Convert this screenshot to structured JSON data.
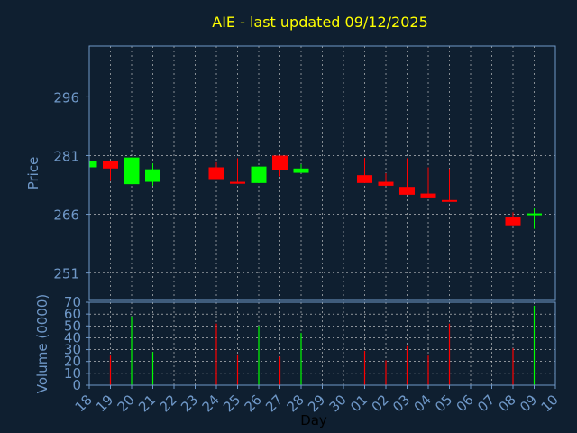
{
  "title": "AIE - last updated 09/12/2025",
  "colors": {
    "background": "#0f1f30",
    "frame": "#6f98c8",
    "grid": "#d8d8d8",
    "up": "#00ff00",
    "down": "#ff0000",
    "title": "#ffff00"
  },
  "chart_data": [
    {
      "type": "candlestick",
      "ylabel": "Price",
      "ylim": [
        244,
        309
      ],
      "yticks": [
        251,
        266,
        281,
        296
      ],
      "grid": true,
      "categories": [
        "18",
        "19",
        "20",
        "21",
        "22",
        "23",
        "24",
        "25",
        "26",
        "27",
        "28",
        "29",
        "30",
        "01",
        "02",
        "03",
        "04",
        "05",
        "06",
        "07",
        "08",
        "09",
        "10"
      ],
      "candles": [
        {
          "day": "18",
          "open": 278,
          "close": 279.5,
          "high": 279.5,
          "low": 278
        },
        {
          "day": "19",
          "open": 279.5,
          "close": 277.7,
          "high": 279.6,
          "low": 274.5
        },
        {
          "day": "20",
          "open": 273.7,
          "close": 280.5,
          "high": 280.5,
          "low": 273.7
        },
        {
          "day": "21",
          "open": 274.3,
          "close": 277.5,
          "high": 279,
          "low": 273.3
        },
        {
          "day": "24",
          "open": 278,
          "close": 275,
          "high": 279.3,
          "low": 275
        },
        {
          "day": "25",
          "open": 274.3,
          "close": 273.8,
          "high": 280.3,
          "low": 273.8
        },
        {
          "day": "26",
          "open": 274,
          "close": 278.2,
          "high": 278.2,
          "low": 274
        },
        {
          "day": "27",
          "open": 281,
          "close": 277.2,
          "high": 281,
          "low": 275.7
        },
        {
          "day": "28",
          "open": 276.6,
          "close": 277.7,
          "high": 278.8,
          "low": 276.6
        },
        {
          "day": "01",
          "open": 276,
          "close": 274,
          "high": 280.4,
          "low": 274
        },
        {
          "day": "02",
          "open": 274.3,
          "close": 273.3,
          "high": 276.5,
          "low": 273.3
        },
        {
          "day": "03",
          "open": 273,
          "close": 271,
          "high": 280.3,
          "low": 271
        },
        {
          "day": "04",
          "open": 271.3,
          "close": 270.3,
          "high": 278,
          "low": 270.3
        },
        {
          "day": "05",
          "open": 269.6,
          "close": 269.2,
          "high": 277.6,
          "low": 269.2
        },
        {
          "day": "08",
          "open": 265.2,
          "close": 263.2,
          "high": 266.5,
          "low": 263.2
        },
        {
          "day": "09",
          "open": 266,
          "close": 266,
          "high": 267.5,
          "low": 262.3
        }
      ]
    },
    {
      "type": "bar",
      "ylabel": "Volume (0000)",
      "xlabel": "Day",
      "ylim": [
        0,
        70
      ],
      "yticks": [
        0,
        10,
        20,
        30,
        40,
        50,
        60,
        70
      ],
      "grid": true,
      "series": [
        {
          "day": "19",
          "value": 25,
          "dir": "down"
        },
        {
          "day": "20",
          "value": 58,
          "dir": "up"
        },
        {
          "day": "21",
          "value": 28,
          "dir": "up"
        },
        {
          "day": "24",
          "value": 52,
          "dir": "down"
        },
        {
          "day": "25",
          "value": 26,
          "dir": "down"
        },
        {
          "day": "26",
          "value": 50,
          "dir": "up"
        },
        {
          "day": "27",
          "value": 24,
          "dir": "down"
        },
        {
          "day": "28",
          "value": 44,
          "dir": "up"
        },
        {
          "day": "01",
          "value": 29,
          "dir": "down"
        },
        {
          "day": "02",
          "value": 21,
          "dir": "down"
        },
        {
          "day": "03",
          "value": 33,
          "dir": "down"
        },
        {
          "day": "04",
          "value": 25,
          "dir": "down"
        },
        {
          "day": "05",
          "value": 52,
          "dir": "down"
        },
        {
          "day": "08",
          "value": 31,
          "dir": "down"
        },
        {
          "day": "09",
          "value": 67,
          "dir": "up"
        }
      ]
    }
  ]
}
